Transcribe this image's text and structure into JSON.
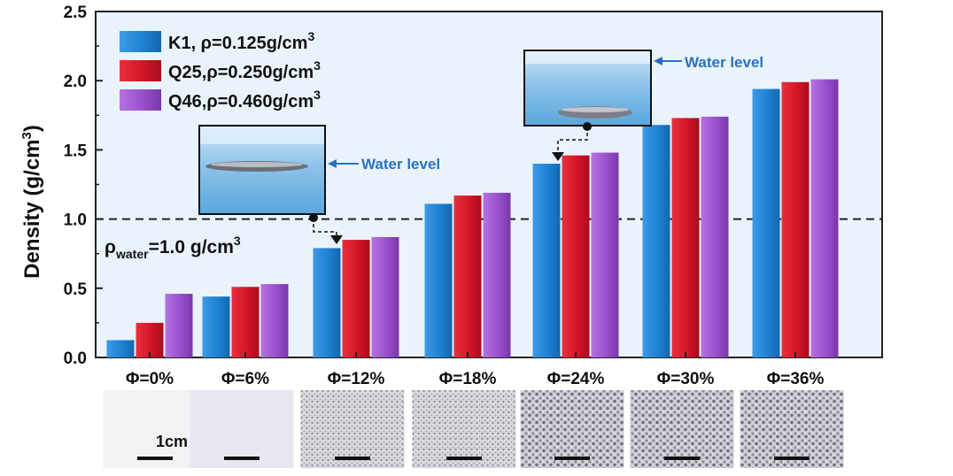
{
  "chart_data": {
    "type": "bar",
    "ylabel": "Density (g/cm",
    "ylabel_sup": "3",
    "ylabel_close": ")",
    "ylim": [
      0,
      2.5
    ],
    "yticks": [
      "0.0",
      "0.5",
      "1.0",
      "1.5",
      "2.0",
      "2.5"
    ],
    "categories": [
      "Φ=0%",
      "Φ=6%",
      "Φ=12%",
      "Φ=18%",
      "Φ=24%",
      "Φ=30%",
      "Φ=36%"
    ],
    "series": [
      {
        "name": "K1,  ρ=0.125g/cm",
        "sup": "3",
        "color": "#1e82d2",
        "values": [
          0.125,
          0.44,
          0.79,
          1.11,
          1.4,
          1.68,
          1.94
        ]
      },
      {
        "name": "Q25,ρ=0.250g/cm",
        "sup": "3",
        "color": "#d41528",
        "values": [
          0.25,
          0.51,
          0.85,
          1.17,
          1.46,
          1.73,
          1.99
        ]
      },
      {
        "name": "Q46,ρ=0.460g/cm",
        "sup": "3",
        "color": "#9a4fcc",
        "values": [
          0.46,
          0.53,
          0.87,
          1.19,
          1.48,
          1.74,
          2.01
        ]
      }
    ],
    "reference_line": {
      "value": 1.0,
      "label_prefix": "ρ",
      "label_sub": "water",
      "label_main": "=1.0 g/cm",
      "label_sup": "3"
    },
    "annotations": [
      "Water level",
      "Water level"
    ],
    "scale_bar_label": "1cm",
    "grid": false,
    "legend_position": "top-left"
  }
}
